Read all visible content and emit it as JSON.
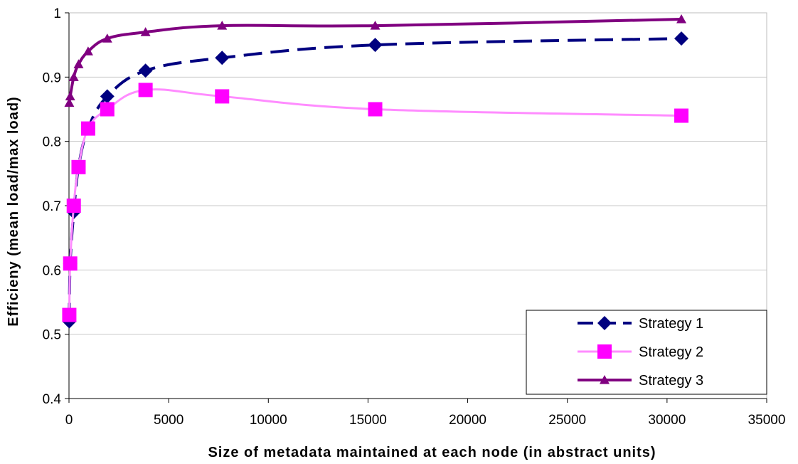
{
  "chart_data": {
    "type": "line",
    "title": "",
    "xlabel": "Size of metadata maintained at each node (in abstract units)",
    "ylabel": "Efficieny (mean load/max load)",
    "xlim": [
      0,
      35000
    ],
    "ylim": [
      0.4,
      1.0
    ],
    "xticks": [
      0,
      5000,
      10000,
      15000,
      20000,
      25000,
      30000,
      35000
    ],
    "yticks": [
      0.4,
      0.5,
      0.6,
      0.7,
      0.8,
      0.9,
      1.0
    ],
    "xtick_labels": [
      "0",
      "5000",
      "10000",
      "15000",
      "20000",
      "25000",
      "30000",
      "35000"
    ],
    "ytick_labels": [
      "0.4",
      "0.5",
      "0.6",
      "0.7",
      "0.8",
      "0.9",
      "1"
    ],
    "grid": "horizontal",
    "legend_position": "bottom-right",
    "series": [
      {
        "name": "Strategy 1",
        "color": "#000080",
        "marker": "diamond",
        "line": "dashed",
        "x": [
          15,
          60,
          240,
          480,
          960,
          1920,
          3840,
          7680,
          15360,
          30720
        ],
        "y": [
          0.52,
          0.61,
          0.69,
          0.76,
          0.82,
          0.87,
          0.91,
          0.93,
          0.95,
          0.96
        ]
      },
      {
        "name": "Strategy 2",
        "color": "#ff00ff",
        "marker": "square",
        "line": "solid-light",
        "x": [
          15,
          60,
          240,
          480,
          960,
          1920,
          3840,
          7680,
          15360,
          30720
        ],
        "y": [
          0.53,
          0.61,
          0.7,
          0.76,
          0.82,
          0.85,
          0.88,
          0.87,
          0.85,
          0.84
        ]
      },
      {
        "name": "Strategy 3",
        "color": "#800080",
        "marker": "triangle",
        "line": "solid",
        "x": [
          15,
          60,
          240,
          480,
          960,
          1920,
          3840,
          7680,
          15360,
          30720
        ],
        "y": [
          0.86,
          0.87,
          0.9,
          0.92,
          0.94,
          0.96,
          0.97,
          0.98,
          0.98,
          0.99
        ]
      }
    ]
  }
}
